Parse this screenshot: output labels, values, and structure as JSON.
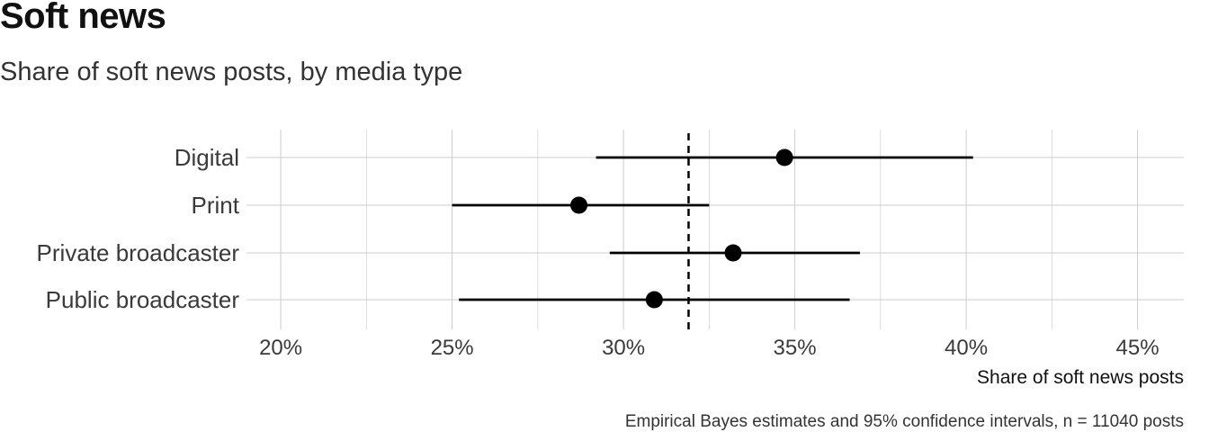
{
  "title": "Soft news",
  "subtitle": "Share of soft news posts, by media type",
  "caption": "Empirical Bayes estimates and 95% confidence intervals, n = 11040 posts",
  "chart_data": {
    "type": "scatter",
    "orientation": "horizontal",
    "title": "Soft news",
    "subtitle": "Share of soft news posts, by media type",
    "xlabel": "Share of soft news posts",
    "ylabel": "",
    "categories": [
      "Digital",
      "Print",
      "Private broadcaster",
      "Public broadcaster"
    ],
    "estimates": [
      0.347,
      0.287,
      0.332,
      0.309
    ],
    "ci_low": [
      0.292,
      0.25,
      0.296,
      0.252
    ],
    "ci_high": [
      0.402,
      0.325,
      0.369,
      0.366
    ],
    "reference_line": 0.319,
    "xlim": [
      0.19,
      0.4635
    ],
    "xticks": [
      0.2,
      0.25,
      0.3,
      0.35,
      0.4,
      0.45
    ],
    "xtick_labels": [
      "20%",
      "25%",
      "30%",
      "35%",
      "40%",
      "45%"
    ],
    "grid": true,
    "colors": {
      "points": "#000000",
      "grid": "#cccccc",
      "reference": "#000000"
    }
  }
}
